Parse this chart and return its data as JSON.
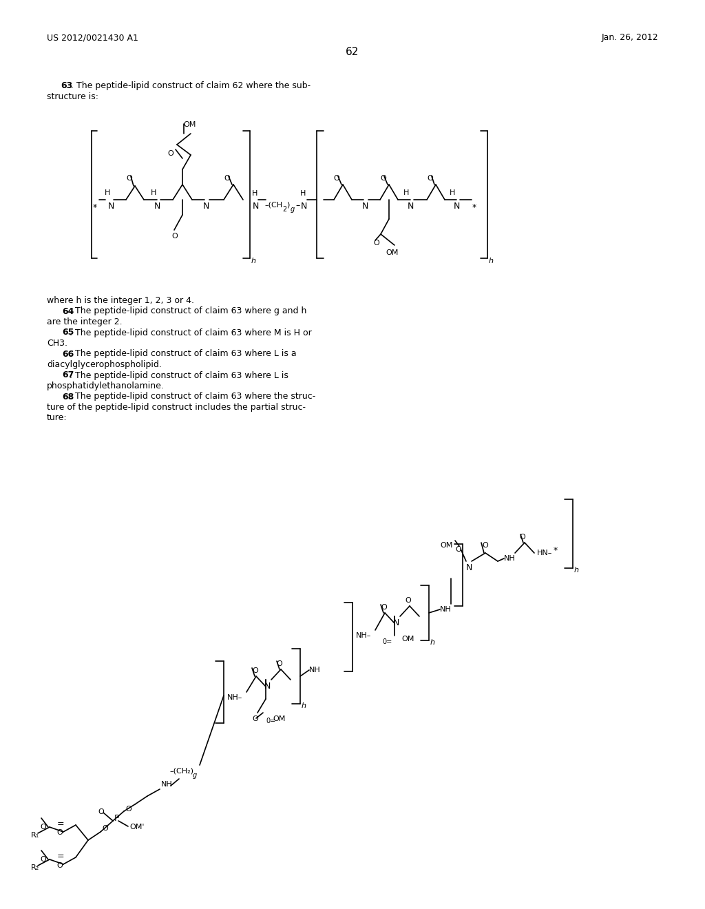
{
  "bg": "#ffffff",
  "fg": "#000000",
  "page_num": "62",
  "left_hdr": "US 2012/0021430 A1",
  "right_hdr": "Jan. 26, 2012"
}
